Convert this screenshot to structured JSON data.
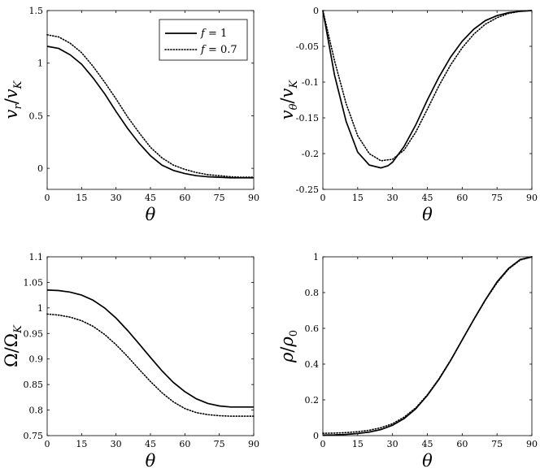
{
  "legend": {
    "entries": [
      {
        "var": "f",
        "rest": " = 1",
        "style": "solid"
      },
      {
        "var": "f",
        "rest": " = 0.7",
        "style": "dotted"
      }
    ]
  },
  "chart_data": [
    {
      "type": "line",
      "xlabel": "θ",
      "ylabel": {
        "main": "v",
        "sub1": "r",
        "sep": "/",
        "main2": "v",
        "sub2": "K"
      },
      "xlim": [
        0,
        90
      ],
      "ylim": [
        -0.2,
        1.5
      ],
      "xticks": [
        "0",
        "15",
        "30",
        "45",
        "60",
        "75",
        "90"
      ],
      "yticks": [
        "0",
        "0.5",
        "1",
        "1.5"
      ],
      "ytick_values": [
        0,
        0.5,
        1,
        1.5
      ],
      "legend_position": "top-right",
      "series": [
        {
          "name": "f = 1",
          "style": "solid",
          "x": [
            0,
            5,
            10,
            15,
            20,
            25,
            30,
            35,
            40,
            45,
            50,
            55,
            60,
            65,
            70,
            75,
            80,
            85,
            90
          ],
          "y": [
            1.16,
            1.14,
            1.08,
            0.99,
            0.86,
            0.71,
            0.54,
            0.38,
            0.24,
            0.12,
            0.03,
            -0.02,
            -0.05,
            -0.07,
            -0.08,
            -0.085,
            -0.09,
            -0.09,
            -0.09
          ]
        },
        {
          "name": "f = 0.7",
          "style": "dotted",
          "x": [
            0,
            5,
            10,
            15,
            20,
            25,
            30,
            35,
            40,
            45,
            50,
            55,
            60,
            65,
            70,
            75,
            80,
            85,
            90
          ],
          "y": [
            1.27,
            1.25,
            1.19,
            1.1,
            0.97,
            0.82,
            0.66,
            0.49,
            0.34,
            0.2,
            0.1,
            0.03,
            -0.01,
            -0.04,
            -0.06,
            -0.07,
            -0.08,
            -0.085,
            -0.085
          ]
        }
      ]
    },
    {
      "type": "line",
      "xlabel": "θ",
      "ylabel": {
        "main": "v",
        "sub1": "θ",
        "sep": "/",
        "main2": "v",
        "sub2": "K"
      },
      "xlim": [
        0,
        90
      ],
      "ylim": [
        -0.25,
        0
      ],
      "xticks": [
        "0",
        "15",
        "30",
        "45",
        "60",
        "75",
        "90"
      ],
      "yticks": [
        "-0.25",
        "-0.2",
        "-0.15",
        "-0.1",
        "-0.05",
        "0"
      ],
      "ytick_values": [
        -0.25,
        -0.2,
        -0.15,
        -0.1,
        -0.05,
        0
      ],
      "series": [
        {
          "name": "f = 1",
          "style": "solid",
          "x": [
            0,
            5,
            10,
            15,
            20,
            25,
            28,
            30,
            35,
            40,
            45,
            50,
            55,
            60,
            65,
            70,
            75,
            80,
            85,
            90
          ],
          "y": [
            0,
            -0.09,
            -0.155,
            -0.198,
            -0.216,
            -0.22,
            -0.217,
            -0.212,
            -0.19,
            -0.16,
            -0.125,
            -0.093,
            -0.065,
            -0.043,
            -0.026,
            -0.014,
            -0.007,
            -0.003,
            -0.001,
            0
          ]
        },
        {
          "name": "f = 0.7",
          "style": "dotted",
          "x": [
            0,
            5,
            10,
            15,
            20,
            25,
            30,
            35,
            40,
            45,
            50,
            55,
            60,
            65,
            70,
            75,
            80,
            85,
            90
          ],
          "y": [
            0,
            -0.07,
            -0.13,
            -0.175,
            -0.2,
            -0.21,
            -0.208,
            -0.195,
            -0.17,
            -0.138,
            -0.105,
            -0.076,
            -0.052,
            -0.033,
            -0.019,
            -0.01,
            -0.004,
            -0.001,
            0
          ]
        }
      ]
    },
    {
      "type": "line",
      "xlabel": "θ",
      "ylabel": {
        "main": "Ω",
        "sub1": "",
        "sep": "/",
        "main2": "Ω",
        "sub2": "K"
      },
      "xlim": [
        0,
        90
      ],
      "ylim": [
        0.75,
        1.1
      ],
      "xticks": [
        "0",
        "15",
        "30",
        "45",
        "60",
        "75",
        "90"
      ],
      "yticks": [
        "0.75",
        "0.8",
        "0.85",
        "0.9",
        "0.95",
        "1",
        "1.05",
        "1.1"
      ],
      "ytick_values": [
        0.75,
        0.8,
        0.85,
        0.9,
        0.95,
        1,
        1.05,
        1.1
      ],
      "series": [
        {
          "name": "f = 1",
          "style": "solid",
          "x": [
            0,
            5,
            10,
            15,
            20,
            25,
            30,
            35,
            40,
            45,
            50,
            55,
            60,
            65,
            70,
            75,
            80,
            85,
            90
          ],
          "y": [
            1.035,
            1.034,
            1.031,
            1.025,
            1.015,
            1.0,
            0.98,
            0.956,
            0.93,
            0.903,
            0.877,
            0.854,
            0.836,
            0.822,
            0.813,
            0.808,
            0.806,
            0.806,
            0.806
          ]
        },
        {
          "name": "f = 0.7",
          "style": "dotted",
          "x": [
            0,
            5,
            10,
            15,
            20,
            25,
            30,
            35,
            40,
            45,
            50,
            55,
            60,
            65,
            70,
            75,
            80,
            85,
            90
          ],
          "y": [
            0.988,
            0.986,
            0.982,
            0.975,
            0.964,
            0.948,
            0.928,
            0.905,
            0.88,
            0.856,
            0.834,
            0.816,
            0.803,
            0.795,
            0.791,
            0.789,
            0.788,
            0.788,
            0.788
          ]
        }
      ]
    },
    {
      "type": "line",
      "xlabel": "θ",
      "ylabel": {
        "main": "ρ",
        "sub1": "",
        "sep": "/",
        "main2": "ρ",
        "sub2": "0"
      },
      "xlim": [
        0,
        90
      ],
      "ylim": [
        0,
        1
      ],
      "xticks": [
        "0",
        "15",
        "30",
        "45",
        "60",
        "75",
        "90"
      ],
      "yticks": [
        "0",
        "0.2",
        "0.4",
        "0.6",
        "0.8",
        "1"
      ],
      "ytick_values": [
        0,
        0.2,
        0.4,
        0.6,
        0.8,
        1
      ],
      "series": [
        {
          "name": "f = 1",
          "style": "solid",
          "x": [
            0,
            5,
            10,
            15,
            20,
            25,
            30,
            35,
            40,
            45,
            50,
            55,
            60,
            65,
            70,
            75,
            80,
            85,
            90
          ],
          "y": [
            0.003,
            0.004,
            0.007,
            0.012,
            0.02,
            0.034,
            0.058,
            0.095,
            0.15,
            0.225,
            0.315,
            0.42,
            0.535,
            0.65,
            0.76,
            0.86,
            0.935,
            0.985,
            1.0
          ]
        },
        {
          "name": "f = 0.7",
          "style": "dotted",
          "x": [
            0,
            5,
            10,
            15,
            20,
            25,
            30,
            35,
            40,
            45,
            50,
            55,
            60,
            65,
            70,
            75,
            80,
            85,
            90
          ],
          "y": [
            0.013,
            0.014,
            0.017,
            0.022,
            0.03,
            0.044,
            0.067,
            0.103,
            0.155,
            0.228,
            0.318,
            0.422,
            0.535,
            0.648,
            0.758,
            0.855,
            0.932,
            0.982,
            1.0
          ]
        }
      ]
    }
  ]
}
